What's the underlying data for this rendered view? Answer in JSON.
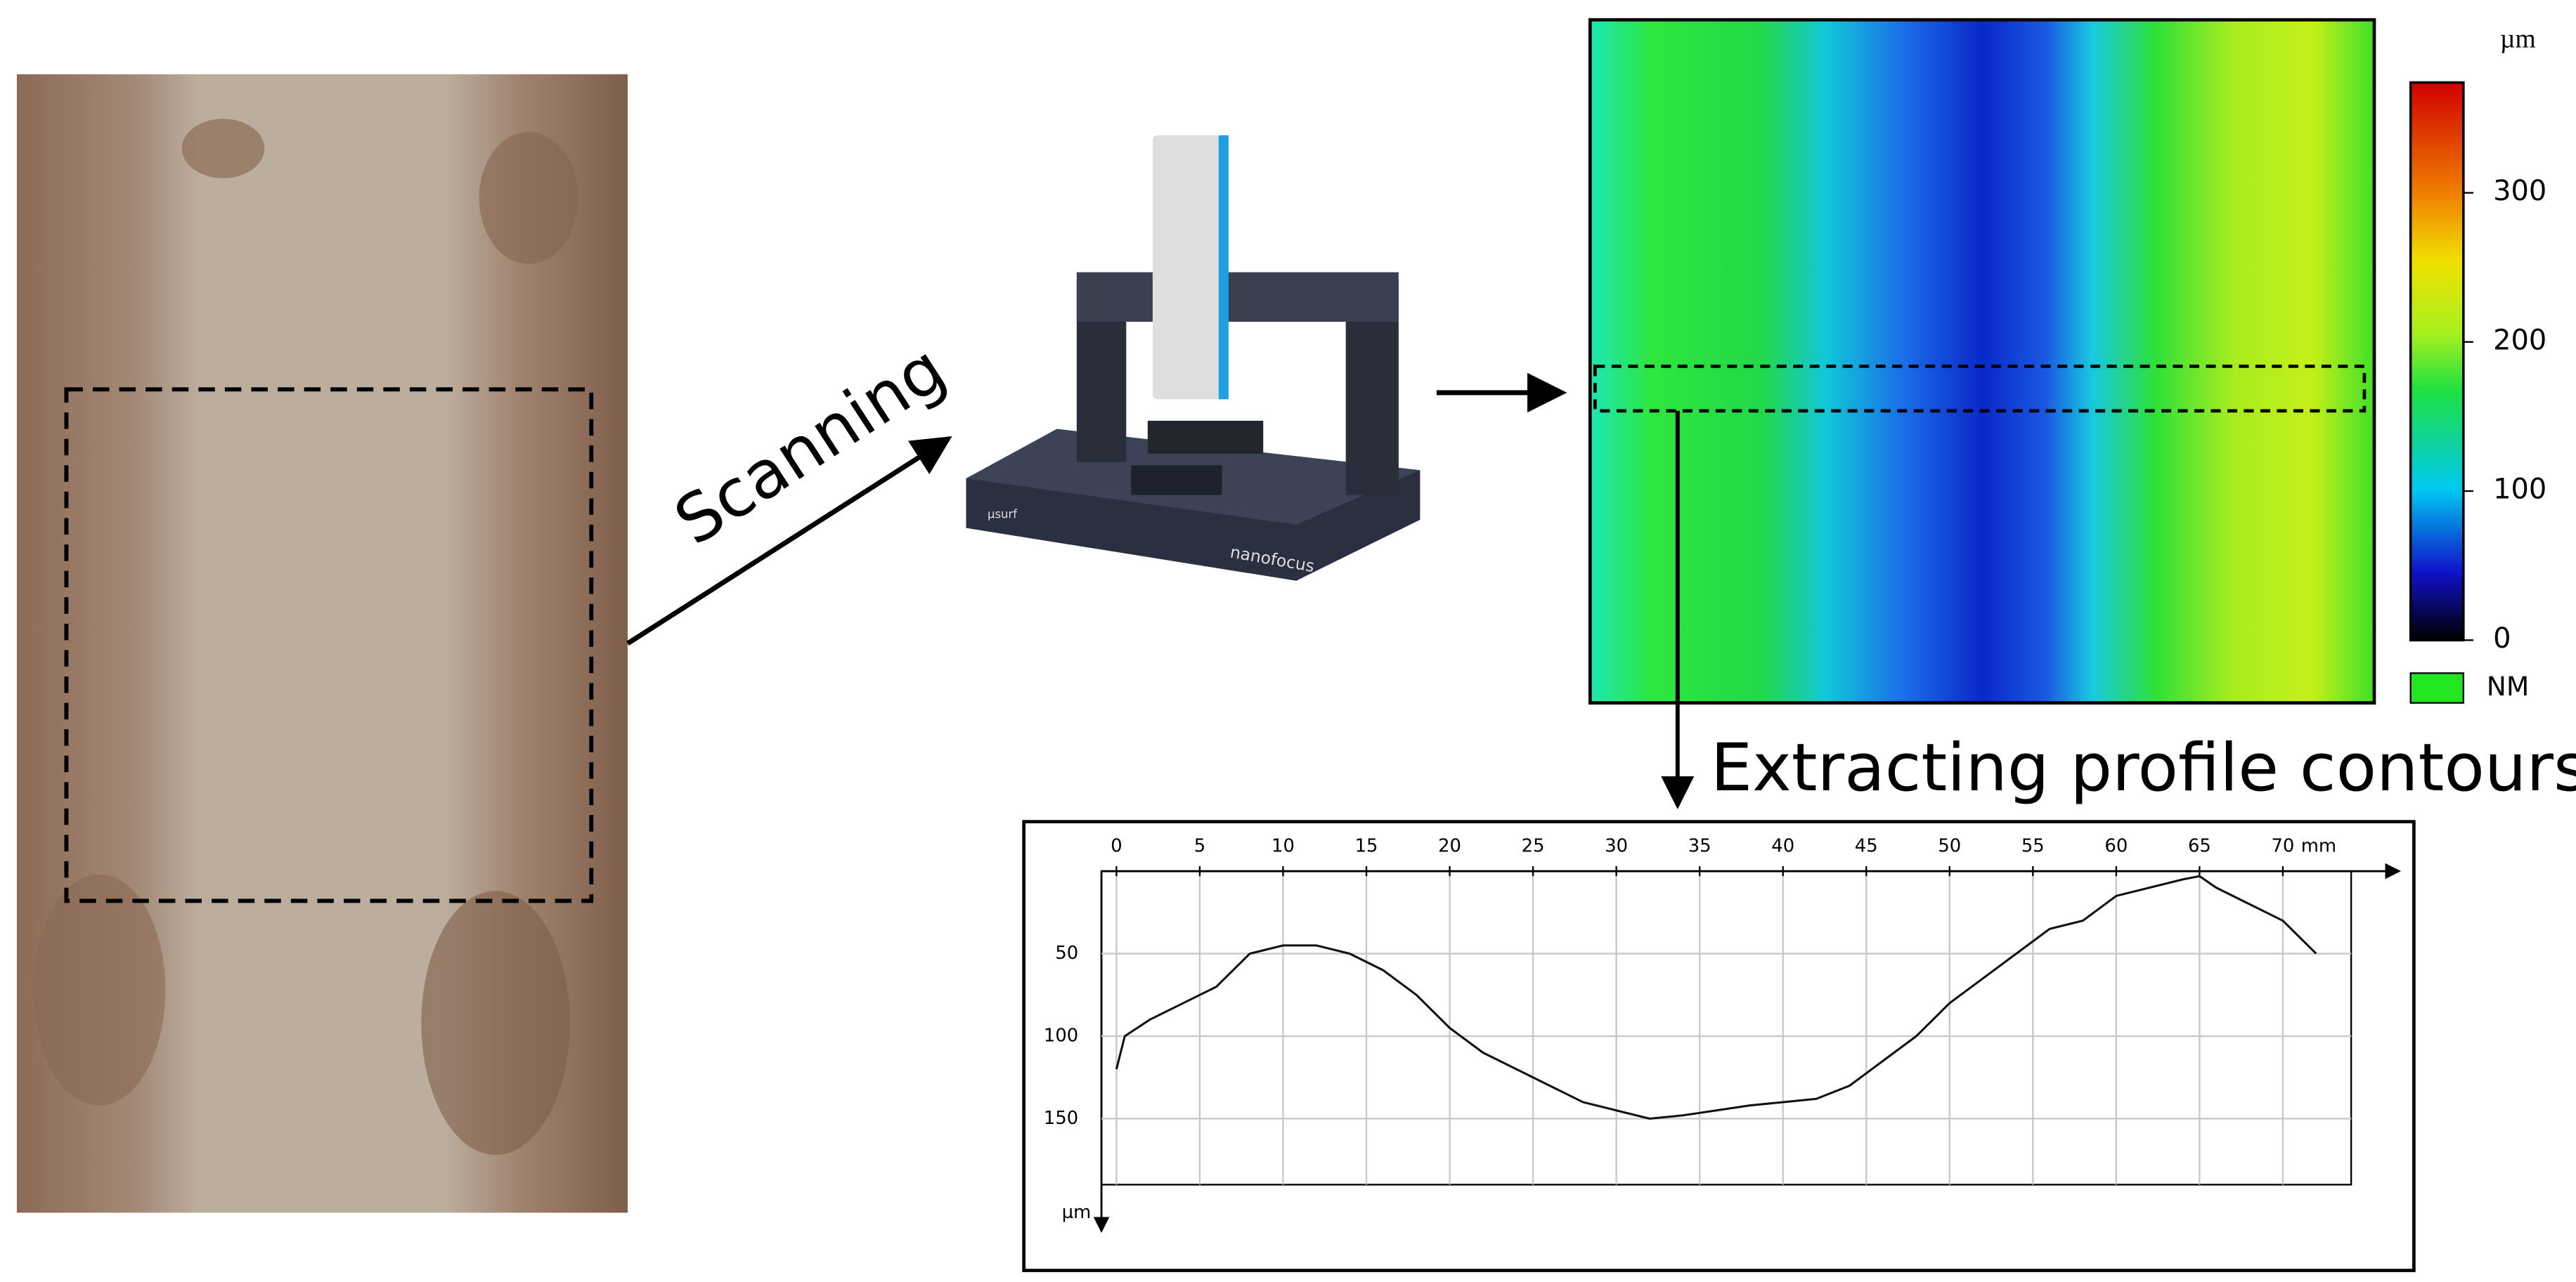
{
  "scanning_label": "Scanning",
  "extracting_label": "Extracting profile contours",
  "instrument": {
    "brand": "µsurf",
    "maker": "nanofocus"
  },
  "colorbar": {
    "unit": "µm",
    "lim": [
      0,
      374
    ],
    "ticks": [
      0,
      100,
      200,
      300
    ],
    "nm_label": "NM",
    "nm_color": "#22e622"
  },
  "profile_chart": {
    "type": "line",
    "x_unit": "mm",
    "y_unit": "µm",
    "xlim": [
      -0.9,
      74.1
    ],
    "ylim": [
      0,
      190
    ],
    "xticks": [
      0,
      5,
      10,
      15,
      20,
      25,
      30,
      35,
      40,
      45,
      50,
      55,
      60,
      65,
      70
    ],
    "yticks": [
      50,
      100,
      150
    ],
    "grid": true,
    "y_inverted": true,
    "color": "#111111",
    "x": [
      0,
      0.5,
      2,
      4,
      6,
      8,
      10,
      12,
      14,
      16,
      18,
      20,
      22,
      24,
      26,
      28,
      30,
      32,
      34,
      36,
      38,
      40,
      42,
      44,
      46,
      48,
      50,
      52,
      54,
      56,
      58,
      60,
      62,
      64,
      65,
      66,
      68,
      70,
      72
    ],
    "values": [
      120,
      100,
      90,
      80,
      70,
      50,
      45,
      45,
      50,
      60,
      75,
      95,
      110,
      120,
      130,
      140,
      145,
      150,
      148,
      145,
      142,
      140,
      138,
      130,
      115,
      100,
      80,
      65,
      50,
      35,
      30,
      15,
      10,
      5,
      3,
      10,
      20,
      30,
      50
    ]
  }
}
